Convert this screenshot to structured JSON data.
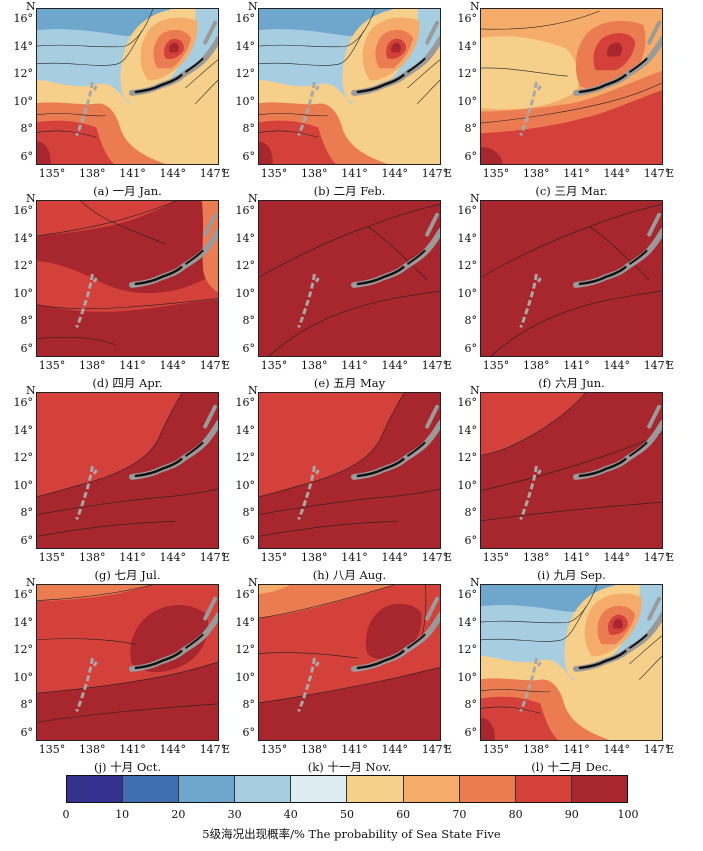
{
  "lat_labels": [
    "16°",
    "14°",
    "12°",
    "10°",
    "8°",
    "6°"
  ],
  "lon_labels": [
    "135°",
    "138°",
    "141°",
    "144°",
    "147°"
  ],
  "east_label": "E",
  "north_label": "N",
  "panels": [
    {
      "caption": "(a) 一月 Jan.",
      "regime": "winter"
    },
    {
      "caption": "(b) 二月 Feb.",
      "regime": "winter"
    },
    {
      "caption": "(c) 三月 Mar.",
      "regime": "spring"
    },
    {
      "caption": "(d) 四月 Apr.",
      "regime": "april"
    },
    {
      "caption": "(e) 五月 May",
      "regime": "summer"
    },
    {
      "caption": "(f) 六月 Jun.",
      "regime": "summer"
    },
    {
      "caption": "(g) 七月 Jul.",
      "regime": "july"
    },
    {
      "caption": "(h) 八月 Aug.",
      "regime": "july"
    },
    {
      "caption": "(i) 九月 Sep.",
      "regime": "sept"
    },
    {
      "caption": "(j) 十月 Oct.",
      "regime": "oct"
    },
    {
      "caption": "(k) 十一月 Nov.",
      "regime": "nov"
    },
    {
      "caption": "(l) 十二月 Dec.",
      "regime": "winter"
    }
  ],
  "colorbar": {
    "ticks": [
      "0",
      "10",
      "20",
      "30",
      "40",
      "50",
      "60",
      "70",
      "80",
      "90",
      "100"
    ],
    "colors": [
      "#33338f",
      "#3f6fae",
      "#6ea6cc",
      "#a6cde0",
      "#dcecf1",
      "#f6d08a",
      "#f5ac6a",
      "#eb7c52",
      "#d3413a",
      "#a8262d"
    ],
    "title": "5级海况出现概率/% The probability of Sea State Five"
  }
}
